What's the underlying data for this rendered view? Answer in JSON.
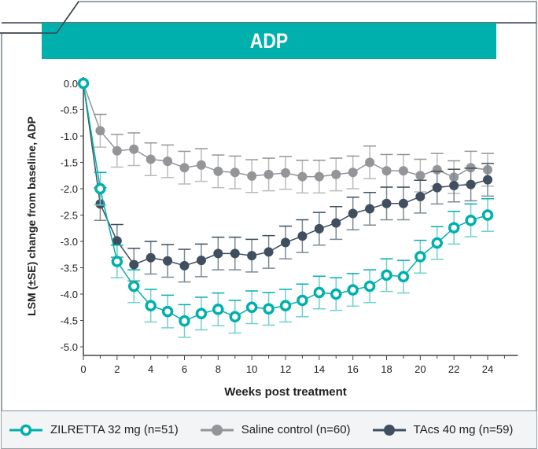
{
  "header": {
    "title": "ADP"
  },
  "chart_data": {
    "type": "line",
    "title": "ADP",
    "xlabel": "Weeks post treatment",
    "ylabel": "LSM (±SE) change from baseline, ADP",
    "xlim": [
      0,
      25
    ],
    "ylim": [
      -5.0,
      0.0
    ],
    "xticks": [
      0,
      2,
      4,
      6,
      8,
      10,
      12,
      14,
      16,
      18,
      20,
      22,
      24
    ],
    "xtick_labels": [
      "0",
      "2",
      "4",
      "6",
      "8",
      "10",
      "12",
      "14",
      "16",
      "18",
      "20",
      "22",
      "24"
    ],
    "yticks": [
      0,
      -0.5,
      -1,
      -1.5,
      -2,
      -2.5,
      -3,
      -3.5,
      -4,
      -4.5,
      -5
    ],
    "ytick_labels": [
      "0.0",
      "-0.5",
      "-1.0",
      "-1.5",
      "-2.0",
      "-2.5",
      "-3.0",
      "-3.5",
      "-4.0",
      "-4.5",
      "-5.0"
    ],
    "grid": false,
    "legend_position": "bottom",
    "x": [
      0,
      1,
      2,
      3,
      4,
      5,
      6,
      7,
      8,
      9,
      10,
      11,
      12,
      13,
      14,
      15,
      16,
      17,
      18,
      19,
      20,
      21,
      22,
      23,
      24
    ],
    "series": [
      {
        "name": "ZILRETTA 32 mg (n=51)",
        "color": "#00b0ad",
        "marker": "open-circle",
        "values": [
          0,
          -2.0,
          -3.38,
          -3.85,
          -4.22,
          -4.33,
          -4.51,
          -4.37,
          -4.29,
          -4.43,
          -4.25,
          -4.28,
          -4.22,
          -4.12,
          -3.97,
          -4.0,
          -3.92,
          -3.85,
          -3.64,
          -3.67,
          -3.29,
          -3.03,
          -2.74,
          -2.6,
          -2.5
        ],
        "se": 0.31
      },
      {
        "name": "Saline control (n=60)",
        "color": "#939598",
        "marker": "filled-circle",
        "values": [
          0,
          -0.9,
          -1.28,
          -1.25,
          -1.44,
          -1.48,
          -1.6,
          -1.55,
          -1.67,
          -1.69,
          -1.76,
          -1.73,
          -1.7,
          -1.77,
          -1.77,
          -1.73,
          -1.69,
          -1.5,
          -1.66,
          -1.66,
          -1.75,
          -1.64,
          -1.78,
          -1.6,
          -1.64
        ],
        "se": 0.31
      },
      {
        "name": "TAcs 40 mg (n=59)",
        "color": "#3f4f5f",
        "marker": "filled-circle",
        "values": [
          0,
          -2.29,
          -2.99,
          -3.44,
          -3.31,
          -3.37,
          -3.46,
          -3.36,
          -3.23,
          -3.23,
          -3.27,
          -3.2,
          -3.02,
          -2.9,
          -2.76,
          -2.65,
          -2.47,
          -2.38,
          -2.28,
          -2.28,
          -2.15,
          -1.98,
          -1.94,
          -1.92,
          -1.83
        ],
        "se": 0.31
      }
    ]
  }
}
